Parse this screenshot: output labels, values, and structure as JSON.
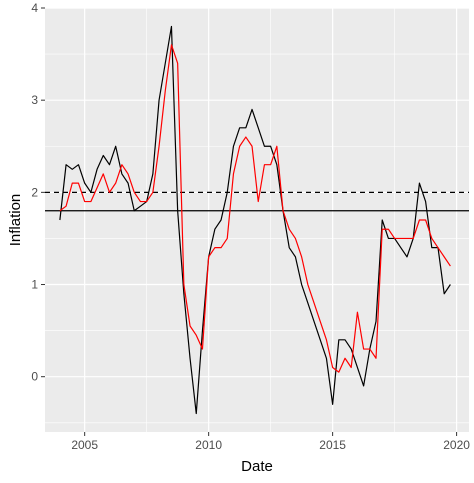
{
  "chart_data": {
    "type": "line",
    "title": "",
    "xlabel": "Date",
    "ylabel": "Inflation",
    "xlim": [
      2003.4,
      2020.5
    ],
    "ylim": [
      -0.6,
      4.0
    ],
    "x_ticks": [
      2005,
      2010,
      2015,
      2020
    ],
    "x_tick_labels": [
      "2005",
      "2010",
      "2015",
      "2020"
    ],
    "y_ticks": [
      0,
      1,
      2,
      3,
      4
    ],
    "y_tick_labels": [
      "0",
      "1",
      "2",
      "3",
      "4"
    ],
    "grid": true,
    "legend": "none",
    "colors": {
      "panel": "#ebebeb",
      "grid": "#ffffff",
      "series_1": "#000000",
      "series_2": "#ff0000",
      "reference": "#000000"
    },
    "reference_lines": [
      {
        "y": 2.0,
        "style": "dashed"
      },
      {
        "y": 1.8,
        "style": "solid"
      }
    ],
    "series": [
      {
        "color": "#000000",
        "points": [
          [
            2004.0,
            1.7
          ],
          [
            2004.25,
            2.3
          ],
          [
            2004.5,
            2.25
          ],
          [
            2004.75,
            2.3
          ],
          [
            2005.0,
            2.1
          ],
          [
            2005.25,
            2.0
          ],
          [
            2005.5,
            2.25
          ],
          [
            2005.75,
            2.4
          ],
          [
            2006.0,
            2.3
          ],
          [
            2006.25,
            2.5
          ],
          [
            2006.5,
            2.2
          ],
          [
            2006.75,
            2.1
          ],
          [
            2007.0,
            1.8
          ],
          [
            2007.25,
            1.85
          ],
          [
            2007.5,
            1.9
          ],
          [
            2007.75,
            2.2
          ],
          [
            2008.0,
            3.0
          ],
          [
            2008.25,
            3.4
          ],
          [
            2008.5,
            3.8
          ],
          [
            2008.75,
            1.8
          ],
          [
            2009.0,
            0.9
          ],
          [
            2009.25,
            0.2
          ],
          [
            2009.5,
            -0.4
          ],
          [
            2009.75,
            0.5
          ],
          [
            2010.0,
            1.3
          ],
          [
            2010.25,
            1.6
          ],
          [
            2010.5,
            1.7
          ],
          [
            2010.75,
            2.0
          ],
          [
            2011.0,
            2.5
          ],
          [
            2011.25,
            2.7
          ],
          [
            2011.5,
            2.7
          ],
          [
            2011.75,
            2.9
          ],
          [
            2012.0,
            2.7
          ],
          [
            2012.25,
            2.5
          ],
          [
            2012.5,
            2.5
          ],
          [
            2012.75,
            2.3
          ],
          [
            2013.0,
            1.8
          ],
          [
            2013.25,
            1.4
          ],
          [
            2013.5,
            1.3
          ],
          [
            2013.75,
            1.0
          ],
          [
            2014.0,
            0.8
          ],
          [
            2014.25,
            0.6
          ],
          [
            2014.5,
            0.4
          ],
          [
            2014.75,
            0.2
          ],
          [
            2015.0,
            -0.3
          ],
          [
            2015.25,
            0.4
          ],
          [
            2015.5,
            0.4
          ],
          [
            2015.75,
            0.3
          ],
          [
            2016.0,
            0.1
          ],
          [
            2016.25,
            -0.1
          ],
          [
            2016.5,
            0.3
          ],
          [
            2016.75,
            0.6
          ],
          [
            2017.0,
            1.7
          ],
          [
            2017.25,
            1.5
          ],
          [
            2017.5,
            1.5
          ],
          [
            2017.75,
            1.4
          ],
          [
            2018.0,
            1.3
          ],
          [
            2018.25,
            1.5
          ],
          [
            2018.5,
            2.1
          ],
          [
            2018.75,
            1.9
          ],
          [
            2019.0,
            1.4
          ],
          [
            2019.25,
            1.4
          ],
          [
            2019.5,
            0.9
          ],
          [
            2019.75,
            1.0
          ]
        ]
      },
      {
        "color": "#ff0000",
        "points": [
          [
            2004.0,
            1.8
          ],
          [
            2004.25,
            1.85
          ],
          [
            2004.5,
            2.1
          ],
          [
            2004.75,
            2.1
          ],
          [
            2005.0,
            1.9
          ],
          [
            2005.25,
            1.9
          ],
          [
            2005.5,
            2.05
          ],
          [
            2005.75,
            2.2
          ],
          [
            2006.0,
            2.0
          ],
          [
            2006.25,
            2.1
          ],
          [
            2006.5,
            2.3
          ],
          [
            2006.75,
            2.2
          ],
          [
            2007.0,
            2.0
          ],
          [
            2007.25,
            1.9
          ],
          [
            2007.5,
            1.9
          ],
          [
            2007.75,
            2.0
          ],
          [
            2008.0,
            2.5
          ],
          [
            2008.25,
            3.1
          ],
          [
            2008.5,
            3.6
          ],
          [
            2008.75,
            3.4
          ],
          [
            2009.0,
            1.0
          ],
          [
            2009.25,
            0.55
          ],
          [
            2009.5,
            0.45
          ],
          [
            2009.75,
            0.3
          ],
          [
            2010.0,
            1.3
          ],
          [
            2010.25,
            1.4
          ],
          [
            2010.5,
            1.4
          ],
          [
            2010.75,
            1.5
          ],
          [
            2011.0,
            2.2
          ],
          [
            2011.25,
            2.5
          ],
          [
            2011.5,
            2.6
          ],
          [
            2011.75,
            2.5
          ],
          [
            2012.0,
            1.9
          ],
          [
            2012.25,
            2.3
          ],
          [
            2012.5,
            2.3
          ],
          [
            2012.75,
            2.5
          ],
          [
            2013.0,
            1.8
          ],
          [
            2013.25,
            1.6
          ],
          [
            2013.5,
            1.5
          ],
          [
            2013.75,
            1.3
          ],
          [
            2014.0,
            1.0
          ],
          [
            2014.25,
            0.8
          ],
          [
            2014.5,
            0.6
          ],
          [
            2014.75,
            0.4
          ],
          [
            2015.0,
            0.1
          ],
          [
            2015.25,
            0.05
          ],
          [
            2015.5,
            0.2
          ],
          [
            2015.75,
            0.1
          ],
          [
            2016.0,
            0.7
          ],
          [
            2016.25,
            0.3
          ],
          [
            2016.5,
            0.3
          ],
          [
            2016.75,
            0.2
          ],
          [
            2017.0,
            1.6
          ],
          [
            2017.25,
            1.6
          ],
          [
            2017.5,
            1.5
          ],
          [
            2017.75,
            1.5
          ],
          [
            2018.0,
            1.5
          ],
          [
            2018.25,
            1.5
          ],
          [
            2018.5,
            1.7
          ],
          [
            2018.75,
            1.7
          ],
          [
            2019.0,
            1.5
          ],
          [
            2019.25,
            1.4
          ],
          [
            2019.5,
            1.3
          ],
          [
            2019.75,
            1.2
          ]
        ]
      }
    ]
  }
}
